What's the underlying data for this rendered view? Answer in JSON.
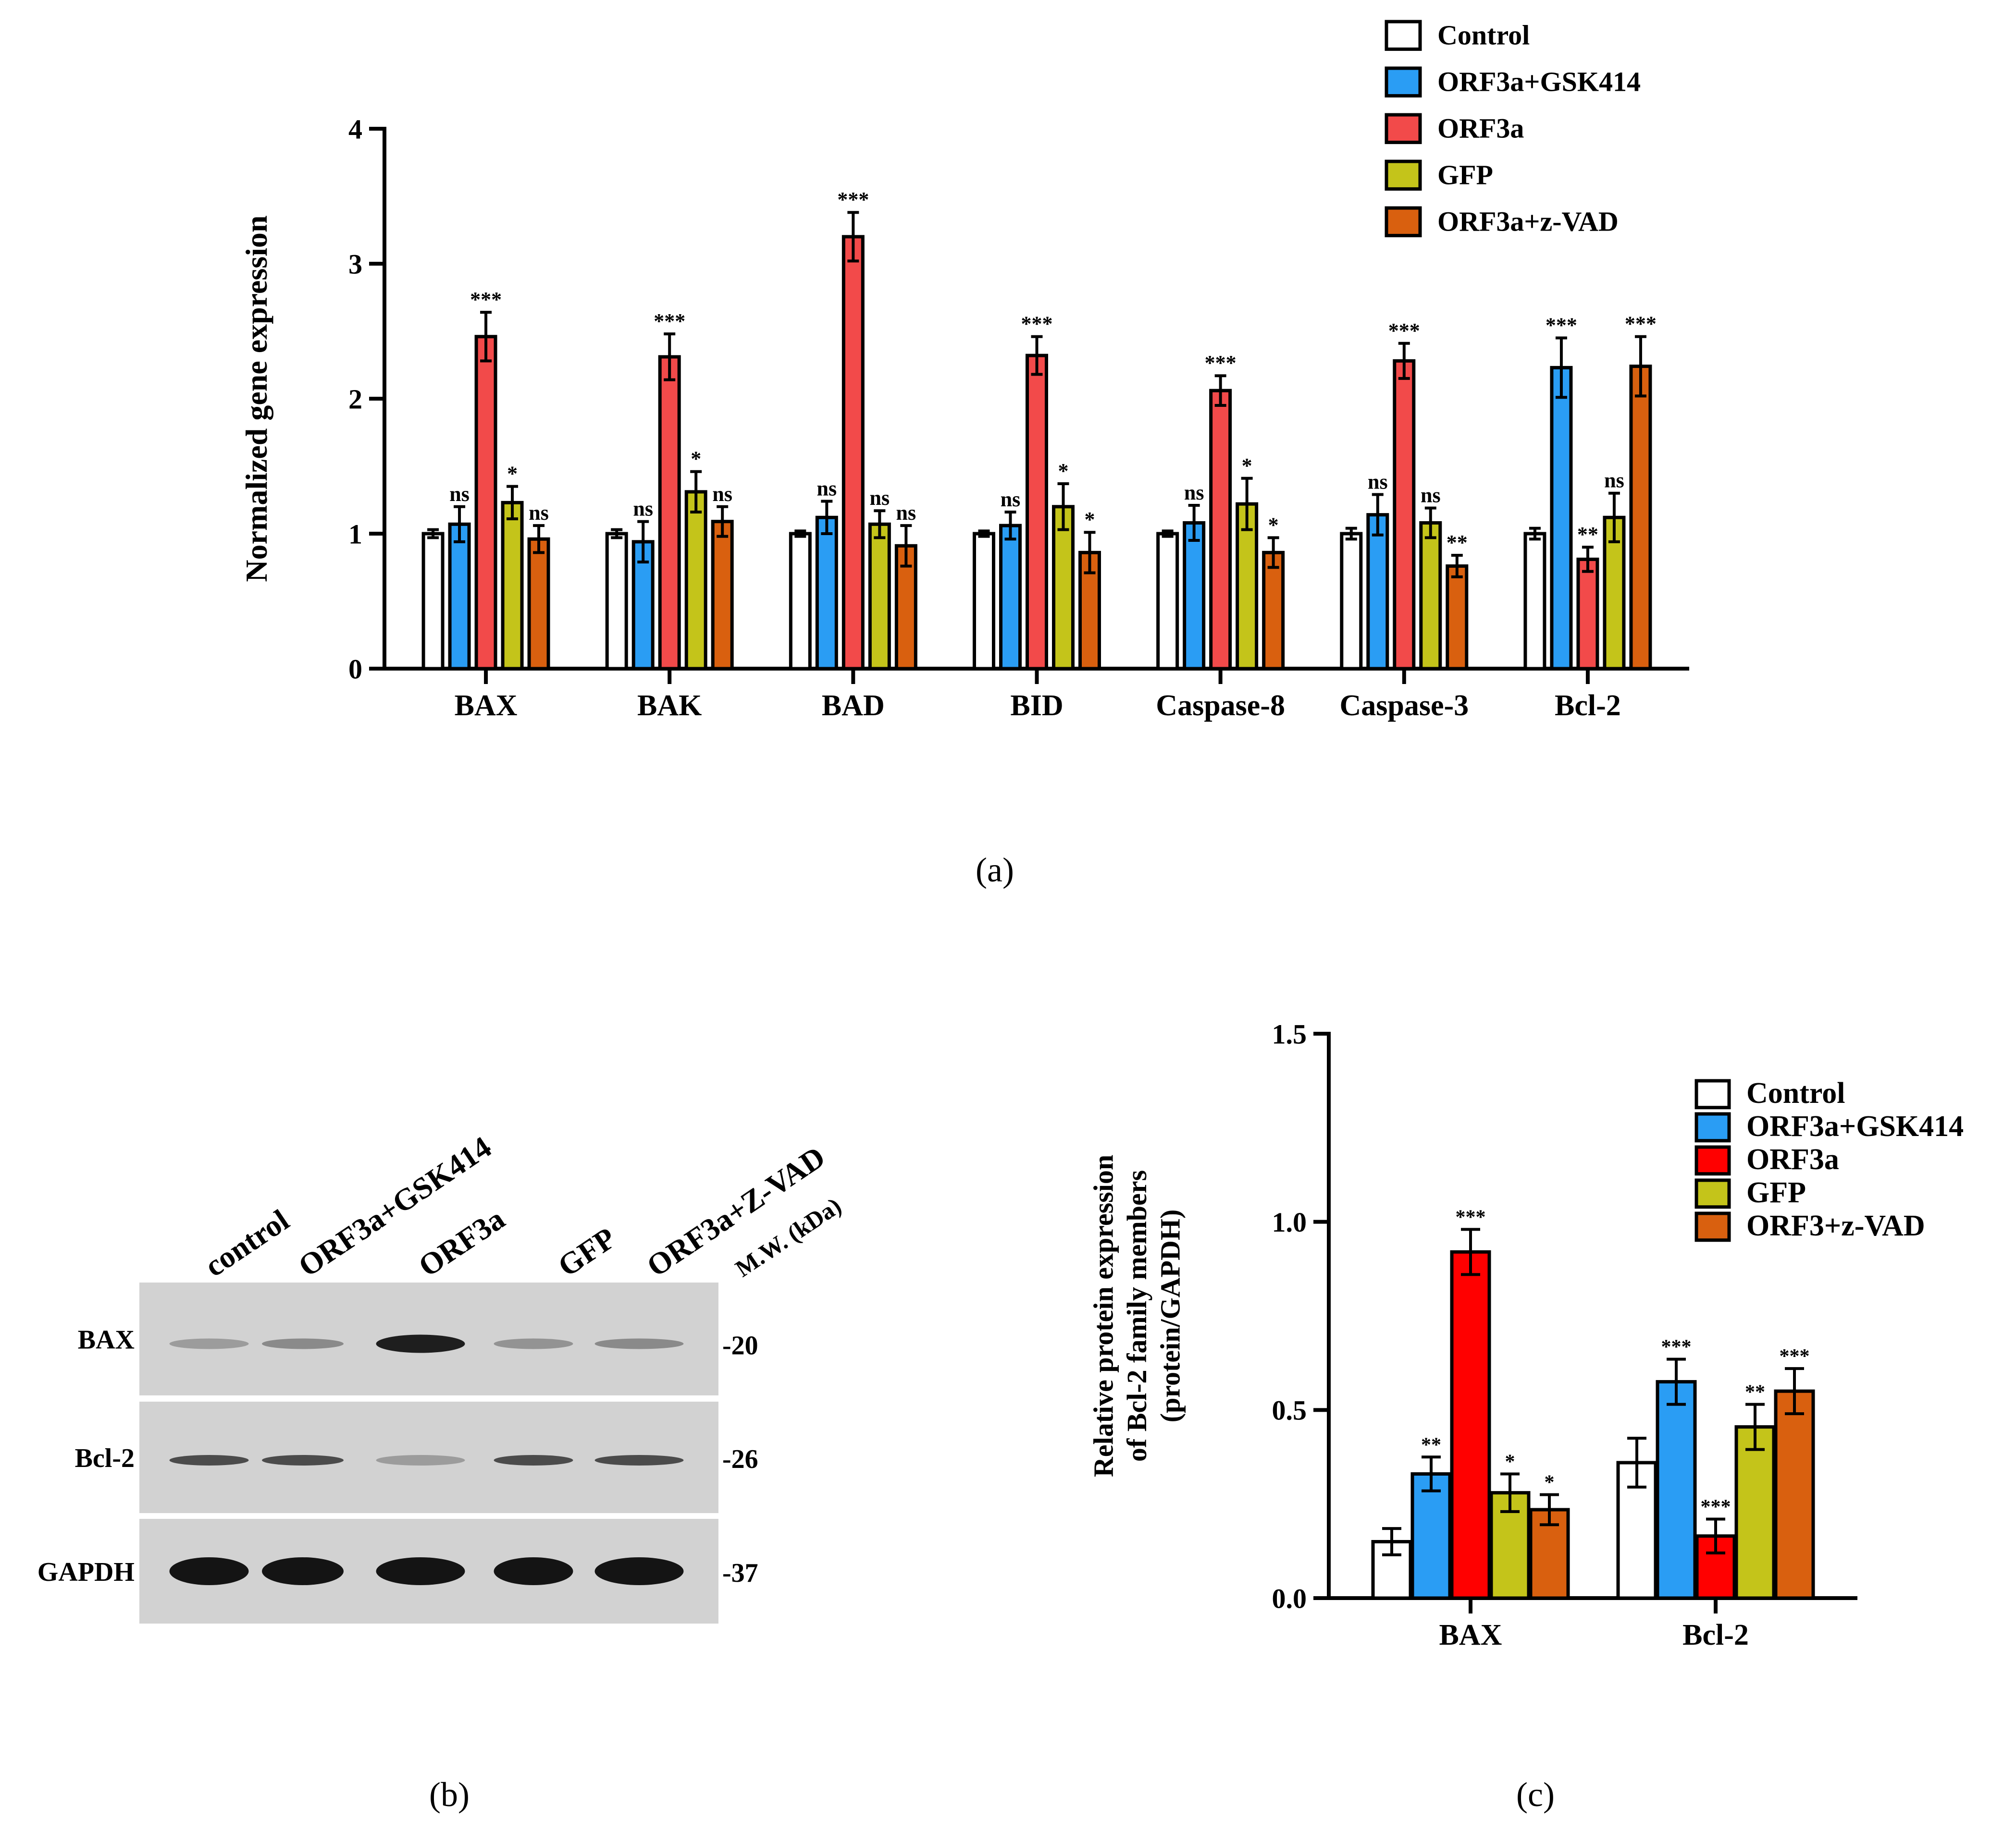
{
  "colors": {
    "control": "#ffffff",
    "gsk": "#2a9df4",
    "orf3a_a": "#f24a4a",
    "orf3a_c": "#ff0000",
    "gfp": "#c4c41a",
    "zvad": "#d9600f",
    "axis": "#000000"
  },
  "chart_data": [
    {
      "id": "a",
      "type": "bar",
      "panel_label": "(a)",
      "ylabel": "Normalized gene expression",
      "xlabel": "",
      "ylim": [
        0,
        4
      ],
      "yticks": [
        "0",
        "1",
        "2",
        "3",
        "4"
      ],
      "categories": [
        "BAX",
        "BAK",
        "BAD",
        "BID",
        "Caspase-8",
        "Caspase-3",
        "Bcl-2"
      ],
      "legend_position": "top-right",
      "series": [
        {
          "name": "Control",
          "color_key": "control",
          "values": [
            1.0,
            1.0,
            1.0,
            1.0,
            1.0,
            1.0,
            1.0
          ],
          "errors": [
            0.03,
            0.03,
            0.02,
            0.02,
            0.02,
            0.04,
            0.04
          ],
          "sig": [
            "",
            "",
            "",
            "",
            "",
            "",
            ""
          ]
        },
        {
          "name": "ORF3a+GSK414",
          "color_key": "gsk",
          "values": [
            1.07,
            0.94,
            1.12,
            1.06,
            1.08,
            1.14,
            2.23
          ],
          "errors": [
            0.13,
            0.15,
            0.12,
            0.1,
            0.13,
            0.15,
            0.22
          ],
          "sig": [
            "ns",
            "ns",
            "ns",
            "ns",
            "ns",
            "ns",
            "***"
          ]
        },
        {
          "name": "ORF3a",
          "color_key": "orf3a_a",
          "values": [
            2.46,
            2.31,
            3.2,
            2.32,
            2.06,
            2.28,
            0.81
          ],
          "errors": [
            0.18,
            0.17,
            0.18,
            0.14,
            0.11,
            0.13,
            0.09
          ],
          "sig": [
            "***",
            "***",
            "***",
            "***",
            "***",
            "***",
            "**"
          ]
        },
        {
          "name": "GFP",
          "color_key": "gfp",
          "values": [
            1.23,
            1.31,
            1.07,
            1.2,
            1.22,
            1.08,
            1.12
          ],
          "errors": [
            0.12,
            0.15,
            0.1,
            0.17,
            0.19,
            0.11,
            0.18
          ],
          "sig": [
            "*",
            "*",
            "ns",
            "*",
            "*",
            "ns",
            "ns"
          ]
        },
        {
          "name": "ORF3a+z-VAD",
          "color_key": "zvad",
          "values": [
            0.96,
            1.09,
            0.91,
            0.86,
            0.86,
            0.76,
            2.24
          ],
          "errors": [
            0.1,
            0.11,
            0.15,
            0.15,
            0.11,
            0.08,
            0.22
          ],
          "sig": [
            "ns",
            "ns",
            "ns",
            "*",
            "*",
            "**",
            "***"
          ]
        }
      ]
    },
    {
      "id": "c",
      "type": "bar",
      "panel_label": "(c)",
      "ylabel": "Relative protein expression of Bcl-2 family members (protein/GAPDH)",
      "ylabel_lines": [
        "Relative protein expression",
        "of Bcl-2 family members",
        "(protein/GAPDH)"
      ],
      "xlabel": "",
      "ylim": [
        0,
        1.5
      ],
      "yticks": [
        "0.0",
        "0.5",
        "1.0",
        "1.5"
      ],
      "categories": [
        "BAX",
        "Bcl-2"
      ],
      "legend_position": "top-right",
      "series": [
        {
          "name": "Control",
          "color_key": "control",
          "values": [
            0.15,
            0.36
          ],
          "errors": [
            0.035,
            0.065
          ],
          "sig": [
            "",
            ""
          ]
        },
        {
          "name": "ORF3a+GSK414",
          "color_key": "gsk",
          "values": [
            0.33,
            0.575
          ],
          "errors": [
            0.045,
            0.06
          ],
          "sig": [
            "**",
            "***"
          ]
        },
        {
          "name": "ORF3a",
          "color_key": "orf3a_c",
          "values": [
            0.92,
            0.165
          ],
          "errors": [
            0.06,
            0.045
          ],
          "sig": [
            "***",
            "***"
          ]
        },
        {
          "name": "GFP",
          "color_key": "gfp",
          "values": [
            0.28,
            0.455
          ],
          "errors": [
            0.05,
            0.06
          ],
          "sig": [
            "*",
            "**"
          ]
        },
        {
          "name": "ORF3+z-VAD",
          "color_key": "zvad",
          "values": [
            0.235,
            0.55
          ],
          "errors": [
            0.04,
            0.06
          ],
          "sig": [
            "*",
            "***"
          ]
        }
      ]
    }
  ],
  "blot": {
    "panel_label": "(b)",
    "lanes": [
      "control",
      "ORF3a+GSK414",
      "ORF3a",
      "GFP",
      "ORF3a+Z-VAD"
    ],
    "mw_header": "M.W. (kDa)",
    "rows": [
      {
        "label": "BAX",
        "mw": "-20",
        "intensity": [
          0.25,
          0.35,
          0.95,
          0.3,
          0.35
        ]
      },
      {
        "label": "Bcl-2",
        "mw": "-26",
        "intensity": [
          0.7,
          0.7,
          0.25,
          0.7,
          0.7
        ]
      },
      {
        "label": "GAPDH",
        "mw": "-37",
        "intensity": [
          1.0,
          1.0,
          1.0,
          1.0,
          1.0
        ]
      }
    ]
  }
}
